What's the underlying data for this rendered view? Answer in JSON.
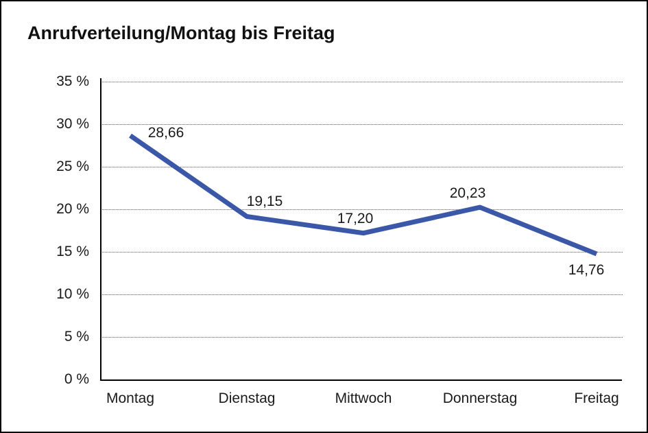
{
  "chart_data": {
    "type": "line",
    "title": "Anrufverteilung/Montag bis Freitag",
    "categories": [
      "Montag",
      "Dienstag",
      "Mittwoch",
      "Donnerstag",
      "Freitag"
    ],
    "values": [
      28.66,
      19.15,
      17.2,
      20.23,
      14.76
    ],
    "value_labels": [
      "28,66",
      "19,15",
      "17,20",
      "20,23",
      "14,76"
    ],
    "y_ticks": [
      {
        "value": 35,
        "label": "35 %"
      },
      {
        "value": 30,
        "label": "30 %"
      },
      {
        "value": 25,
        "label": "25 %"
      },
      {
        "value": 20,
        "label": "20 %"
      },
      {
        "value": 15,
        "label": "15 %"
      },
      {
        "value": 10,
        "label": "10 %"
      },
      {
        "value": 5,
        "label": "5 %"
      },
      {
        "value": 0,
        "label": "0 %"
      }
    ],
    "ylim": [
      0,
      35
    ],
    "xlabel": "",
    "ylabel": "",
    "grid": "horizontal-dotted",
    "legend": "none",
    "line_color": "#3A57A8",
    "axis_color": "#000000",
    "gridline_color": "#555555",
    "text_color": "#1a1a1a",
    "background_color": "#ffffff"
  }
}
